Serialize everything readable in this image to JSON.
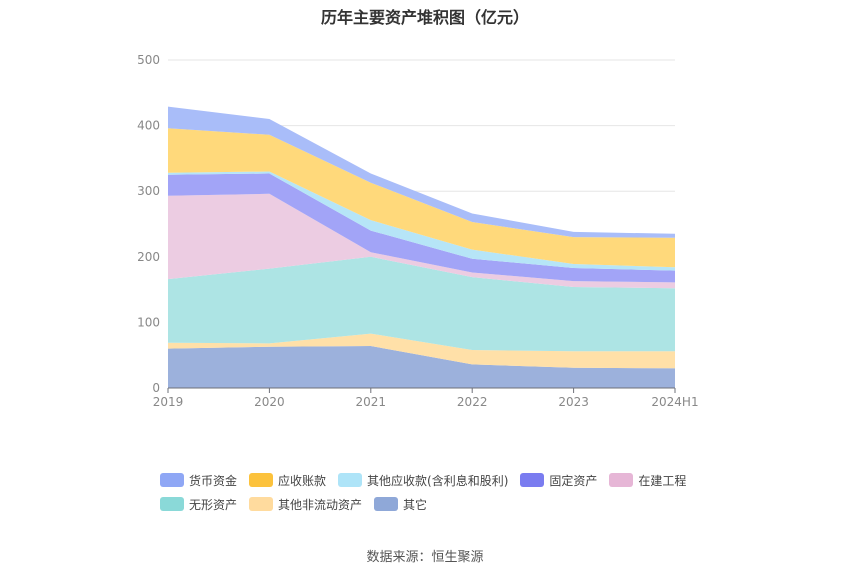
{
  "chart_data": {
    "type": "area",
    "stacked": true,
    "title": "历年主要资产堆积图（亿元）",
    "x": [
      "2019",
      "2020",
      "2021",
      "2022",
      "2023",
      "2024H1"
    ],
    "ylim": [
      0,
      500
    ],
    "yticks": [
      0,
      100,
      200,
      300,
      400,
      500
    ],
    "grid": true,
    "legend_position": "bottom",
    "series": [
      {
        "name": "其它",
        "color": "#9cb1dc",
        "values": [
          60,
          63,
          64,
          36,
          31,
          30
        ]
      },
      {
        "name": "其他非流动资产",
        "color": "#ffe0a8",
        "values": [
          9,
          5,
          19,
          22,
          25,
          26
        ]
      },
      {
        "name": "无形资产",
        "color": "#ade4e4",
        "values": [
          97,
          114,
          117,
          111,
          98,
          96
        ]
      },
      {
        "name": "在建工程",
        "color": "#eccce2",
        "values": [
          127,
          114,
          7,
          7,
          9,
          9
        ]
      },
      {
        "name": "固定资产",
        "color": "#a2a4f7",
        "values": [
          32,
          31,
          33,
          21,
          20,
          18
        ]
      },
      {
        "name": "其他应收款(含利息和股利)",
        "color": "#b6e5f7",
        "values": [
          3,
          3,
          16,
          14,
          6,
          5
        ]
      },
      {
        "name": "应收账款",
        "color": "#ffd97b",
        "values": [
          68,
          56,
          57,
          42,
          41,
          45
        ]
      },
      {
        "name": "货币资金",
        "color": "#a9bdf9",
        "values": [
          33,
          24,
          14,
          13,
          8,
          6
        ]
      }
    ]
  },
  "legend": [
    {
      "name": "货币资金",
      "color": "#8fa7f5"
    },
    {
      "name": "应收账款",
      "color": "#fcc23c"
    },
    {
      "name": "其他应收款(含利息和股利)",
      "color": "#aee4f8"
    },
    {
      "name": "固定资产",
      "color": "#7a7cf0"
    },
    {
      "name": "在建工程",
      "color": "#e6b6d6"
    },
    {
      "name": "无形资产",
      "color": "#8ad9d8"
    },
    {
      "name": "其他非流动资产",
      "color": "#ffdb9e"
    },
    {
      "name": "其它",
      "color": "#8fa8d8"
    }
  ],
  "source_text": "数据来源：恒生聚源"
}
